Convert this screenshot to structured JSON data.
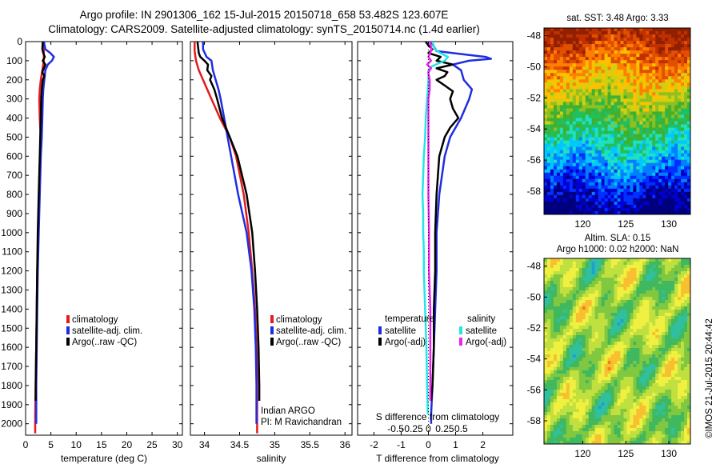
{
  "title_line1": "Argo profile: IN 2901306_162 15-Jul-2015 20150718_658 53.482S 123.607E",
  "title_line2": "Climatology: CARS2009. Satellite-adjusted climatology: synTS_20150714.nc (1.4d earlier)",
  "map1_title": "sat. SST: 3.48 Argo: 3.33",
  "map2_title1": "Altim. SLA: 0.15",
  "map2_title2": "Argo h1000: 0.02 h2000: NaN",
  "credit": "©IMOS 21-Jul-2015 20:44:42",
  "pi_line1": "Indian ARGO",
  "pi_line2": "PI: M Ravichandran",
  "colors": {
    "climatology": "#e41a1c",
    "satellite": "#1f2de0",
    "argo": "#000000",
    "sal_satellite": "#22e6e6",
    "sal_argo": "#ee22ee"
  },
  "chart_data": [
    {
      "type": "line",
      "xlabel": "temperature (deg C)",
      "xlim": [
        0,
        31
      ],
      "ylim": [
        2060,
        0
      ],
      "xticks": [
        0,
        5,
        10,
        15,
        20,
        25,
        30
      ],
      "yticks": [
        0,
        100,
        200,
        300,
        400,
        500,
        600,
        700,
        800,
        900,
        1000,
        1100,
        1200,
        1300,
        1400,
        1500,
        1600,
        1700,
        1800,
        1900,
        2000
      ],
      "legend": [
        "climatology",
        "satellite-adj. clim.",
        "Argo(..raw -QC)"
      ],
      "series": [
        {
          "name": "climatology",
          "depth": [
            0,
            50,
            100,
            150,
            200,
            250,
            300,
            400,
            500,
            600,
            800,
            1000,
            1200,
            1400,
            1600,
            1800,
            1950,
            2050
          ],
          "values": [
            3.5,
            3.6,
            3.6,
            3.3,
            3.0,
            2.8,
            2.7,
            2.8,
            3.0,
            2.9,
            2.7,
            2.5,
            2.3,
            2.2,
            2.1,
            2.0,
            1.9,
            1.9
          ]
        },
        {
          "name": "satellite-adj. clim.",
          "depth": [
            0,
            40,
            60,
            80,
            100,
            120,
            150,
            200,
            250,
            300,
            400,
            500,
            600,
            800,
            1000,
            1200,
            1400,
            1600,
            1800,
            2000
          ],
          "values": [
            3.6,
            3.9,
            4.9,
            5.6,
            5.2,
            4.4,
            3.9,
            3.7,
            3.5,
            3.4,
            3.3,
            3.2,
            3.0,
            2.8,
            2.6,
            2.4,
            2.3,
            2.2,
            2.1,
            2.1
          ]
        },
        {
          "name": "Argo(..raw -QC)",
          "depth": [
            0,
            40,
            60,
            80,
            100,
            120,
            140,
            160,
            180,
            200,
            250,
            300,
            400,
            500,
            600,
            800,
            1000,
            1200,
            1400,
            1600,
            1800,
            1880
          ],
          "values": [
            3.4,
            3.3,
            3.5,
            3.8,
            3.4,
            3.9,
            3.6,
            3.3,
            3.7,
            3.4,
            3.2,
            3.1,
            3.0,
            2.9,
            2.8,
            2.6,
            2.4,
            2.3,
            2.2,
            2.1,
            2.0,
            2.0
          ]
        }
      ]
    },
    {
      "type": "line",
      "xlabel": "salinity",
      "xlim": [
        33.8,
        36.1
      ],
      "ylim": [
        2060,
        0
      ],
      "xticks": [
        34,
        34.5,
        35,
        35.5,
        36
      ],
      "legend": [
        "climatology",
        "satellite-adj. clim.",
        "Argo(..raw -QC)"
      ],
      "series": [
        {
          "name": "climatology",
          "depth": [
            0,
            50,
            100,
            150,
            200,
            300,
            400,
            500,
            600,
            800,
            1000,
            1200,
            1400,
            1600,
            1800,
            2000,
            2050
          ],
          "values": [
            33.86,
            33.86,
            33.88,
            33.92,
            33.98,
            34.1,
            34.22,
            34.36,
            34.45,
            34.56,
            34.63,
            34.68,
            34.72,
            34.74,
            34.75,
            34.75,
            34.75
          ]
        },
        {
          "name": "satellite-adj. clim.",
          "depth": [
            0,
            40,
            80,
            100,
            150,
            200,
            250,
            300,
            400,
            500,
            600,
            800,
            1000,
            1200,
            1400,
            1600,
            1800,
            2000
          ],
          "values": [
            33.98,
            33.98,
            34.03,
            34.1,
            34.12,
            34.16,
            34.2,
            34.23,
            34.28,
            34.33,
            34.38,
            34.48,
            34.6,
            34.67,
            34.71,
            34.73,
            34.74,
            34.74
          ]
        },
        {
          "name": "Argo(..raw -QC)",
          "depth": [
            0,
            60,
            80,
            100,
            120,
            150,
            180,
            200,
            250,
            300,
            400,
            500,
            600,
            800,
            1000,
            1200,
            1400,
            1600,
            1800,
            1880
          ],
          "values": [
            33.9,
            33.92,
            33.94,
            34.0,
            34.05,
            34.04,
            34.1,
            34.08,
            34.14,
            34.18,
            34.25,
            34.36,
            34.47,
            34.6,
            34.68,
            34.72,
            34.75,
            34.77,
            34.78,
            34.78
          ]
        }
      ]
    },
    {
      "type": "line",
      "xlabel": "T difference from climatology",
      "xlabel2": "S difference from climatology",
      "xlim": [
        -2.6,
        3.1
      ],
      "ylim": [
        2060,
        0
      ],
      "xticks": [
        -2,
        -1,
        0,
        1,
        2
      ],
      "s_ticks": [
        -0.5,
        -0.25,
        0,
        0.25,
        0.5
      ],
      "legend_groups": [
        "temperature",
        "salinity"
      ],
      "legend": [
        "satellite",
        "Argo(-adj)",
        "satellite",
        "Argo(-adj)"
      ],
      "series": [
        {
          "name": "satellite",
          "group": "temperature",
          "depth": [
            0,
            50,
            70,
            80,
            90,
            100,
            120,
            150,
            200,
            250,
            300,
            400,
            500,
            600,
            800,
            1000,
            1200,
            1400,
            1600,
            1800,
            1950,
            2000
          ],
          "values": [
            0.1,
            0.3,
            1.5,
            2.1,
            2.3,
            1.5,
            0.9,
            1.2,
            1.3,
            1.6,
            1.5,
            1.2,
            0.8,
            0.6,
            0.4,
            0.3,
            0.3,
            0.25,
            0.2,
            0.15,
            0.1,
            0.1
          ]
        },
        {
          "name": "Argo(-adj)",
          "group": "temperature",
          "depth": [
            0,
            20,
            40,
            60,
            80,
            100,
            120,
            140,
            160,
            180,
            200,
            230,
            260,
            300,
            350,
            400,
            450,
            500,
            600,
            800,
            1000,
            1200,
            1400,
            1600,
            1800,
            1880
          ],
          "values": [
            -0.1,
            0.0,
            0.15,
            0.0,
            0.45,
            0.3,
            0.9,
            0.3,
            0.7,
            0.6,
            0.3,
            0.6,
            0.9,
            0.8,
            0.9,
            1.1,
            0.8,
            0.6,
            0.4,
            0.3,
            0.25,
            0.25,
            0.2,
            0.2,
            0.15,
            0.1
          ]
        },
        {
          "name": "satellite",
          "group": "salinity",
          "depth": [
            0,
            40,
            60,
            80,
            100,
            130,
            150,
            200,
            300,
            400,
            500,
            600,
            700,
            800,
            900,
            1000,
            1100,
            1200,
            1400,
            1600,
            1800,
            1950
          ],
          "values": [
            0.06,
            0.1,
            0.18,
            0.3,
            0.25,
            0.05,
            0.0,
            0.0,
            -0.02,
            -0.04,
            -0.05,
            -0.07,
            -0.08,
            -0.09,
            -0.08,
            -0.08,
            -0.07,
            -0.07,
            -0.05,
            -0.03,
            -0.02,
            -0.01
          ]
        },
        {
          "name": "Argo(-adj)",
          "group": "salinity",
          "depth": [
            0,
            40,
            80,
            100,
            120,
            140,
            160,
            200,
            250,
            300,
            500,
            800,
            1000,
            1200,
            1400,
            1500,
            1600,
            1700,
            1800,
            1880
          ],
          "values": [
            0.02,
            0.05,
            0.0,
            0.04,
            -0.02,
            0.04,
            0.0,
            0.02,
            0.02,
            0.0,
            0.0,
            0.0,
            0.01,
            0.01,
            0.03,
            0.03,
            0.03,
            0.03,
            0.03,
            0.03
          ]
        }
      ]
    },
    {
      "type": "heatmap",
      "title": "sat. SST: 3.48 Argo: 3.33",
      "xticks": [
        120,
        125,
        130
      ],
      "yticks": [
        -48,
        -50,
        -52,
        -54,
        -56,
        -58
      ],
      "xlim": [
        115.5,
        132.5
      ],
      "ylim": [
        -59.5,
        -47.5
      ]
    },
    {
      "type": "heatmap",
      "title": "Altim. SLA: 0.15 / Argo h1000: 0.02 h2000: NaN",
      "xticks": [
        120,
        125,
        130
      ],
      "yticks": [
        -48,
        -50,
        -52,
        -54,
        -56,
        -58
      ],
      "xlim": [
        115.5,
        132.5
      ],
      "ylim": [
        -59.5,
        -47.5
      ]
    }
  ]
}
